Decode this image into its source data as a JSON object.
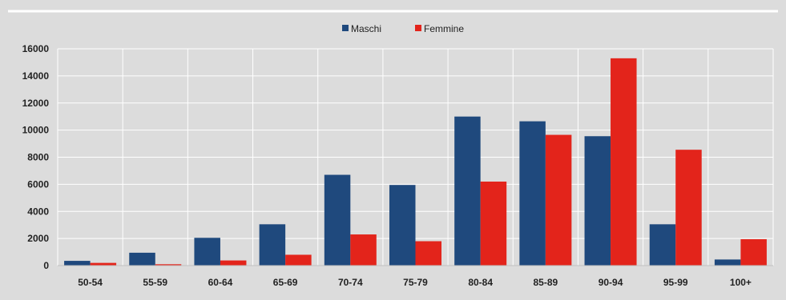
{
  "chart_data": {
    "type": "bar",
    "title": "",
    "xlabel": "",
    "ylabel": "",
    "categories": [
      "50-54",
      "55-59",
      "60-64",
      "65-69",
      "70-74",
      "75-79",
      "80-84",
      "85-89",
      "90-94",
      "95-99",
      "100+"
    ],
    "series": [
      {
        "name": "Maschi",
        "color": "#1f497d",
        "values": [
          350,
          950,
          2050,
          3050,
          6700,
          5950,
          11000,
          10650,
          9550,
          3050,
          450
        ]
      },
      {
        "name": "Femmine",
        "color": "#e3241b",
        "values": [
          200,
          100,
          380,
          800,
          2300,
          1800,
          6200,
          9650,
          15300,
          8550,
          1950
        ]
      }
    ],
    "yticks": [
      "0",
      "2000",
      "4000",
      "6000",
      "8000",
      "10000",
      "12000",
      "14000",
      "16000"
    ],
    "ylim": [
      0,
      16000
    ],
    "grid": true,
    "legend_position": "top-center"
  }
}
